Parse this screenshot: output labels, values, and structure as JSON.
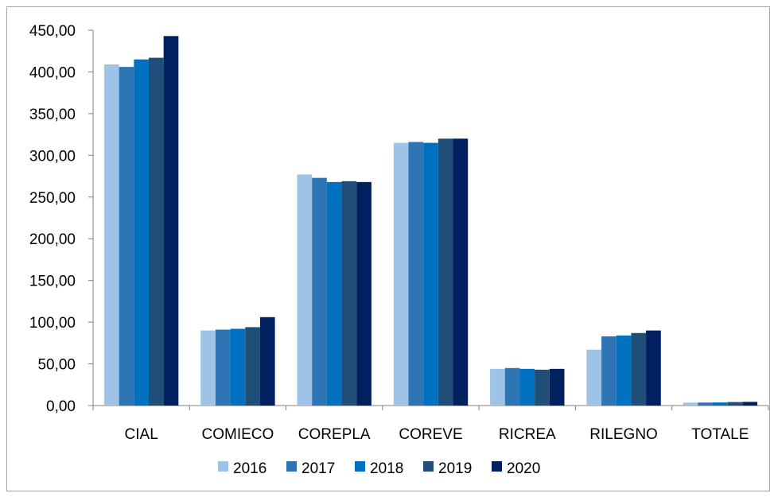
{
  "chart_data": {
    "type": "bar",
    "title": "",
    "xlabel": "",
    "ylabel": "",
    "categories": [
      "CIAL",
      "COMIECO",
      "COREPLA",
      "COREVE",
      "RICREA",
      "RILEGNO",
      "TOTALE"
    ],
    "series": [
      {
        "name": "2016",
        "color": "#9dc3e6",
        "values": [
          409,
          90,
          277,
          315,
          44,
          67,
          3.5
        ]
      },
      {
        "name": "2017",
        "color": "#2e75b6",
        "values": [
          406,
          91,
          273,
          316,
          45,
          83,
          3.6
        ]
      },
      {
        "name": "2018",
        "color": "#0070c0",
        "values": [
          415,
          92,
          268,
          315,
          44,
          84,
          3.7
        ]
      },
      {
        "name": "2019",
        "color": "#1f4e79",
        "values": [
          417,
          94,
          269,
          320,
          43,
          87,
          4.2
        ]
      },
      {
        "name": "2020",
        "color": "#002060",
        "values": [
          443,
          106,
          268,
          320,
          44,
          90,
          4.4
        ]
      }
    ],
    "ylim": [
      0,
      450
    ],
    "yticks": [
      0,
      50,
      100,
      150,
      200,
      250,
      300,
      350,
      400,
      450
    ],
    "ytick_labels": [
      "0,00",
      "50,00",
      "100,00",
      "150,00",
      "200,00",
      "250,00",
      "300,00",
      "350,00",
      "400,00",
      "450,00"
    ],
    "grid": false,
    "legend_position": "bottom"
  }
}
